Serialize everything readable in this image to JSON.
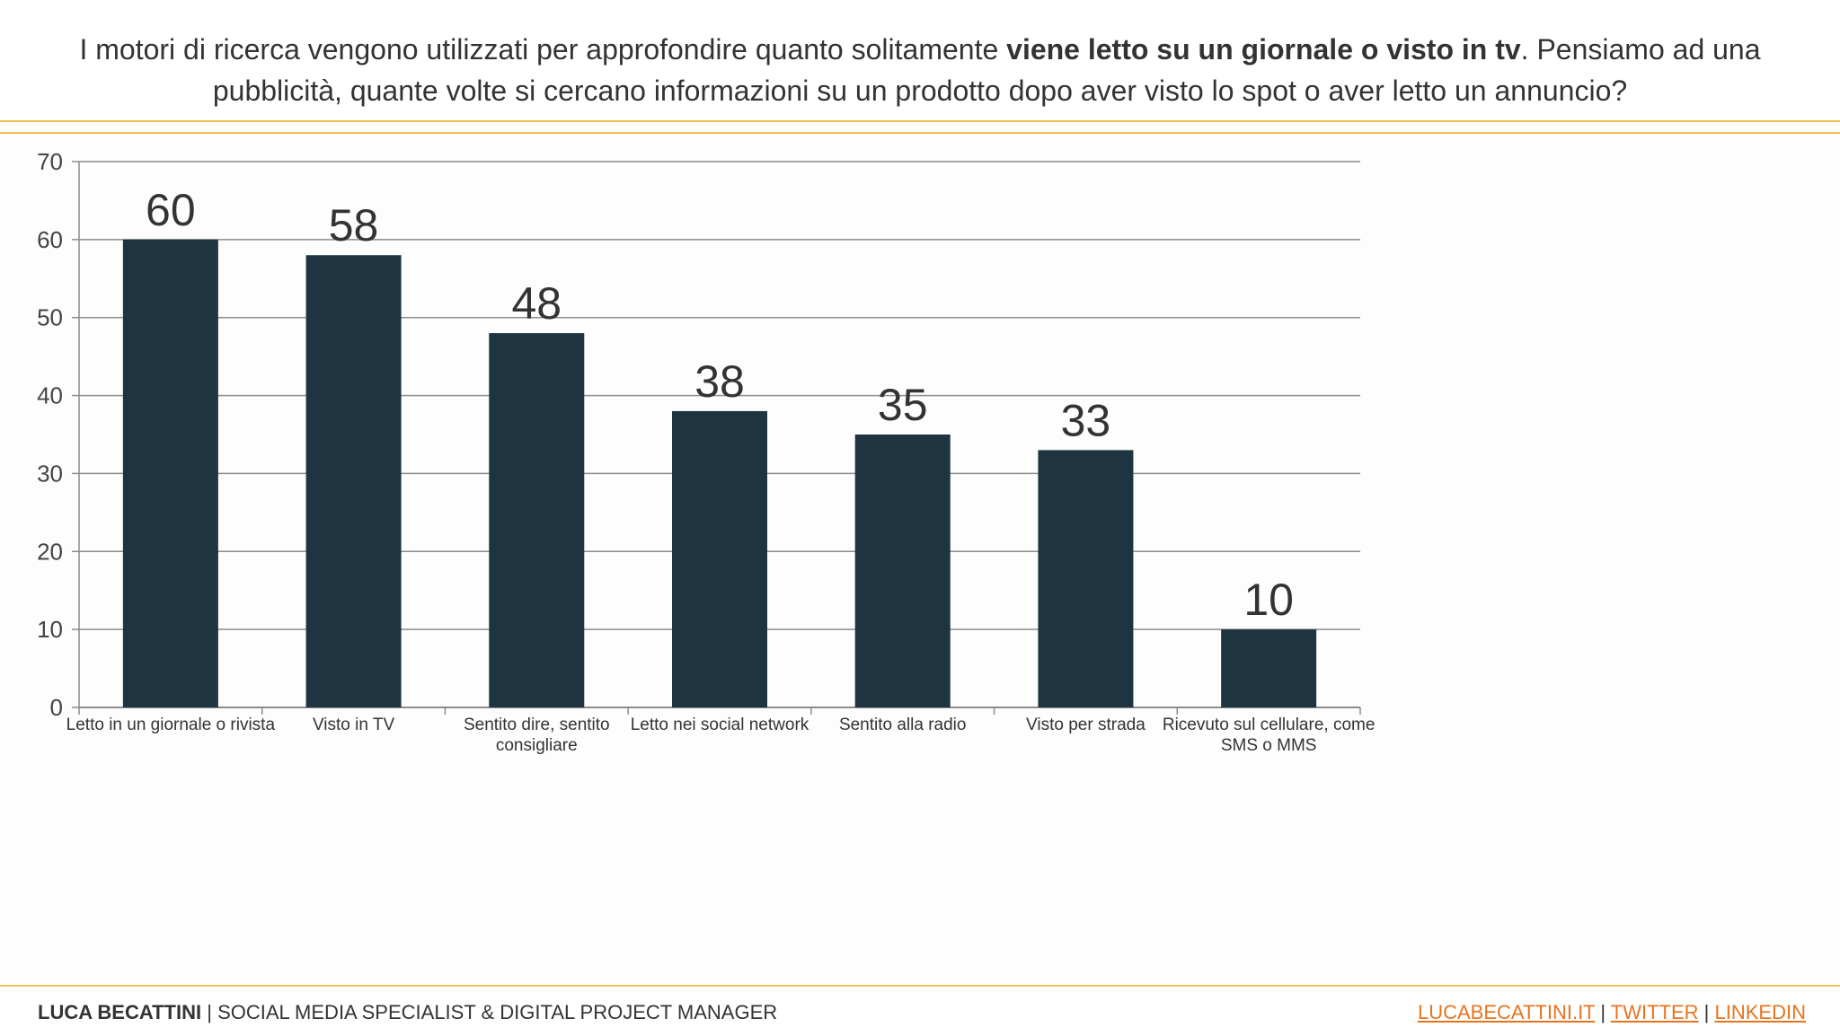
{
  "header": {
    "line1_pre": "I motori di ricerca vengono utilizzati per approfondire quanto solitamente ",
    "line1_bold": "viene letto su un giornale o visto in tv",
    "line1_post": ". Pensiamo ad una",
    "line2": "pubblicità, quante volte si cercano informazioni su un prodotto dopo aver visto lo spot o aver letto un annuncio?"
  },
  "chart_data": {
    "type": "bar",
    "title": "",
    "xlabel": "",
    "ylabel": "",
    "ylim": [
      0,
      70
    ],
    "yticks": [
      0,
      10,
      20,
      30,
      40,
      50,
      60,
      70
    ],
    "grid": true,
    "categories": [
      [
        "Letto in un giornale o rivista"
      ],
      [
        "Visto in TV"
      ],
      [
        "Sentito dire, sentito",
        "consigliare"
      ],
      [
        "Letto nei social network"
      ],
      [
        "Sentito alla radio"
      ],
      [
        "Visto per strada"
      ],
      [
        "Ricevuto sul cellulare, come",
        "SMS o MMS"
      ]
    ],
    "values": [
      60,
      58,
      48,
      38,
      35,
      33,
      10
    ],
    "bar_color": "#1e3440",
    "grid_color": "#8c8c8c"
  },
  "footer": {
    "name": "LUCA BECATTINI",
    "separator": "|",
    "role": "SOCIAL MEDIA SPECIALIST & DIGITAL PROJECT MANAGER",
    "links": [
      "LUCABECATTINI.IT",
      "TWITTER",
      "LINKEDIN"
    ],
    "accent": "#e8731e",
    "rule_color": "#f2c04a"
  }
}
